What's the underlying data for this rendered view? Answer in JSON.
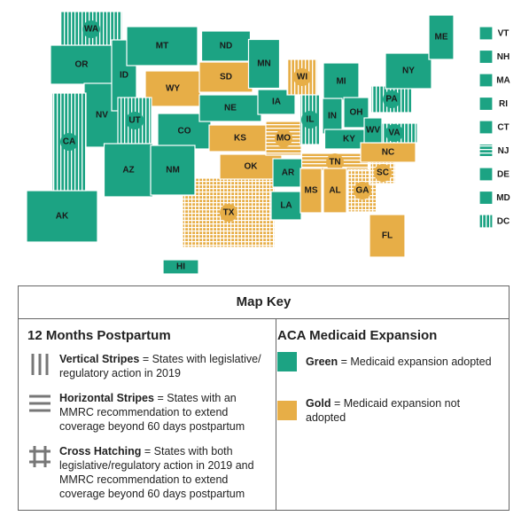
{
  "map": {
    "colors": {
      "green": "#1ca383",
      "gold": "#e7ae47"
    },
    "states": [
      {
        "label": "TX",
        "fill": "gold",
        "pattern": "cross"
      },
      {
        "label": "AK",
        "fill": "green",
        "pattern": null
      },
      {
        "label": "WA",
        "fill": "green",
        "pattern": "vertical"
      },
      {
        "label": "OR",
        "fill": "green",
        "pattern": null
      },
      {
        "label": "NV",
        "fill": "green",
        "pattern": null
      },
      {
        "label": "CA",
        "fill": "green",
        "pattern": "vertical"
      },
      {
        "label": "ID",
        "fill": "green",
        "pattern": null
      },
      {
        "label": "MT",
        "fill": "green",
        "pattern": null
      },
      {
        "label": "WY",
        "fill": "gold",
        "pattern": null
      },
      {
        "label": "UT",
        "fill": "green",
        "pattern": "vertical"
      },
      {
        "label": "CO",
        "fill": "green",
        "pattern": null
      },
      {
        "label": "AZ",
        "fill": "green",
        "pattern": null
      },
      {
        "label": "NM",
        "fill": "green",
        "pattern": null
      },
      {
        "label": "ND",
        "fill": "green",
        "pattern": null
      },
      {
        "label": "SD",
        "fill": "gold",
        "pattern": null
      },
      {
        "label": "NE",
        "fill": "green",
        "pattern": null
      },
      {
        "label": "KS",
        "fill": "gold",
        "pattern": null
      },
      {
        "label": "OK",
        "fill": "gold",
        "pattern": null
      },
      {
        "label": "MN",
        "fill": "green",
        "pattern": null
      },
      {
        "label": "IA",
        "fill": "green",
        "pattern": null
      },
      {
        "label": "MO",
        "fill": "gold",
        "pattern": "horizontal"
      },
      {
        "label": "AR",
        "fill": "green",
        "pattern": null
      },
      {
        "label": "LA",
        "fill": "green",
        "pattern": null
      },
      {
        "label": "WI",
        "fill": "gold",
        "pattern": "vertical"
      },
      {
        "label": "IL",
        "fill": "green",
        "pattern": "vertical"
      },
      {
        "label": "MI",
        "fill": "green",
        "pattern": null
      },
      {
        "label": "IN",
        "fill": "green",
        "pattern": null
      },
      {
        "label": "OH",
        "fill": "green",
        "pattern": null
      },
      {
        "label": "KY",
        "fill": "green",
        "pattern": null
      },
      {
        "label": "TN",
        "fill": "gold",
        "pattern": "horizontal"
      },
      {
        "label": "MS",
        "fill": "gold",
        "pattern": null
      },
      {
        "label": "AL",
        "fill": "gold",
        "pattern": null
      },
      {
        "label": "GA",
        "fill": "gold",
        "pattern": "cross"
      },
      {
        "label": "FL",
        "fill": "gold",
        "pattern": null
      },
      {
        "label": "SC",
        "fill": "gold",
        "pattern": "cross"
      },
      {
        "label": "NC",
        "fill": "gold",
        "pattern": null
      },
      {
        "label": "VA",
        "fill": "green",
        "pattern": "vertical"
      },
      {
        "label": "WV",
        "fill": "green",
        "pattern": null
      },
      {
        "label": "PA",
        "fill": "green",
        "pattern": "vertical"
      },
      {
        "label": "NY",
        "fill": "green",
        "pattern": null
      },
      {
        "label": "ME",
        "fill": "green",
        "pattern": null
      },
      {
        "label": "HI",
        "fill": "green",
        "pattern": null
      }
    ],
    "small_states": [
      {
        "label": "VT",
        "fill": "green",
        "pattern": null
      },
      {
        "label": "NH",
        "fill": "green",
        "pattern": null
      },
      {
        "label": "MA",
        "fill": "green",
        "pattern": null
      },
      {
        "label": "RI",
        "fill": "green",
        "pattern": null
      },
      {
        "label": "CT",
        "fill": "green",
        "pattern": null
      },
      {
        "label": "NJ",
        "fill": "green",
        "pattern": "horizontal"
      },
      {
        "label": "DE",
        "fill": "green",
        "pattern": null
      },
      {
        "label": "MD",
        "fill": "green",
        "pattern": null
      },
      {
        "label": "DC",
        "fill": "green",
        "pattern": "vertical"
      }
    ]
  },
  "key": {
    "title": "Map Key",
    "left": {
      "heading": "12 Months Postpartum",
      "items": [
        {
          "term": "Vertical Stripes",
          "desc": "= States with legislative/ regulatory action in 2019"
        },
        {
          "term": "Horizontal Stripes",
          "desc": "= States with an MMRC recommendation to extend coverage beyond 60 days postpartum"
        },
        {
          "term": "Cross Hatching",
          "desc": "= States with both legislative/regulatory action in 2019 and MMRC recommendation to extend coverage beyond 60 days postpartum"
        }
      ]
    },
    "right": {
      "heading": "ACA Medicaid Expansion",
      "items": [
        {
          "term": "Green",
          "desc": "= Medicaid expansion adopted"
        },
        {
          "term": "Gold",
          "desc": "= Medicaid expansion not adopted"
        }
      ]
    }
  }
}
